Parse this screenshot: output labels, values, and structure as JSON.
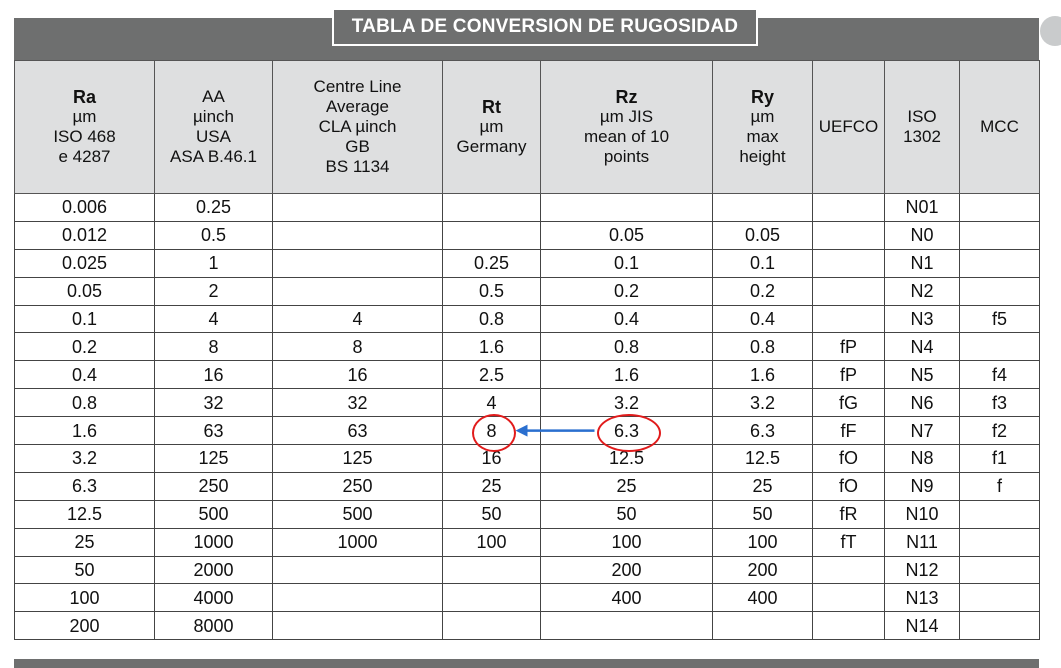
{
  "title": "TABLA DE CONVERSION DE RUGOSIDAD",
  "headers": [
    {
      "bold": "Ra",
      "lines": [
        "µm",
        "ISO 468",
        "e 4287"
      ]
    },
    {
      "bold": "",
      "lines": [
        "AA",
        "µinch",
        "USA",
        "ASA B.46.1"
      ]
    },
    {
      "bold": "",
      "lines": [
        "Centre Line",
        "Average",
        "CLA µinch",
        "GB",
        "BS 1134"
      ]
    },
    {
      "bold": "Rt",
      "lines": [
        "µm",
        "Germany"
      ]
    },
    {
      "bold": "Rz",
      "lines": [
        "µm JIS",
        "mean of 10",
        "points"
      ]
    },
    {
      "bold": "Ry",
      "lines": [
        "µm",
        "max",
        "height"
      ]
    },
    {
      "bold": "",
      "lines": [
        "UEFCO"
      ]
    },
    {
      "bold": "",
      "lines": [
        "ISO",
        "1302"
      ]
    },
    {
      "bold": "",
      "lines": [
        "MCC"
      ]
    }
  ],
  "rows": [
    [
      "0.006",
      "0.25",
      "",
      "",
      "",
      "",
      "",
      "N01",
      ""
    ],
    [
      "0.012",
      "0.5",
      "",
      "",
      "0.05",
      "0.05",
      "",
      "N0",
      ""
    ],
    [
      "0.025",
      "1",
      "",
      "0.25",
      "0.1",
      "0.1",
      "",
      "N1",
      ""
    ],
    [
      "0.05",
      "2",
      "",
      "0.5",
      "0.2",
      "0.2",
      "",
      "N2",
      ""
    ],
    [
      "0.1",
      "4",
      "4",
      "0.8",
      "0.4",
      "0.4",
      "",
      "N3",
      "f5"
    ],
    [
      "0.2",
      "8",
      "8",
      "1.6",
      "0.8",
      "0.8",
      "fP",
      "N4",
      ""
    ],
    [
      "0.4",
      "16",
      "16",
      "2.5",
      "1.6",
      "1.6",
      "fP",
      "N5",
      "f4"
    ],
    [
      "0.8",
      "32",
      "32",
      "4",
      "3.2",
      "3.2",
      "fG",
      "N6",
      "f3"
    ],
    [
      "1.6",
      "63",
      "63",
      "8",
      "6.3",
      "6.3",
      "fF",
      "N7",
      "f2"
    ],
    [
      "3.2",
      "125",
      "125",
      "16",
      "12.5",
      "12.5",
      "fO",
      "N8",
      "f1"
    ],
    [
      "6.3",
      "250",
      "250",
      "25",
      "25",
      "25",
      "fO",
      "N9",
      "f"
    ],
    [
      "12.5",
      "500",
      "500",
      "50",
      "50",
      "50",
      "fR",
      "N10",
      ""
    ],
    [
      "25",
      "1000",
      "1000",
      "100",
      "100",
      "100",
      "fT",
      "N11",
      ""
    ],
    [
      "50",
      "2000",
      "",
      "",
      "200",
      "200",
      "",
      "N12",
      ""
    ],
    [
      "100",
      "4000",
      "",
      "",
      "400",
      "400",
      "",
      "N13",
      ""
    ],
    [
      "200",
      "8000",
      "",
      "",
      "",
      "",
      "",
      "N14",
      ""
    ]
  ],
  "colors": {
    "bar": "#6e6f6f",
    "header_bg": "#dedfe0",
    "highlight_circle": "#e11b1b",
    "arrow": "#2a6fcf"
  },
  "annotations": {
    "circled_cells": [
      {
        "row": 8,
        "col": 3
      },
      {
        "row": 8,
        "col": 4
      }
    ],
    "arrow": "from Rz 6.3 to Rt 8"
  }
}
